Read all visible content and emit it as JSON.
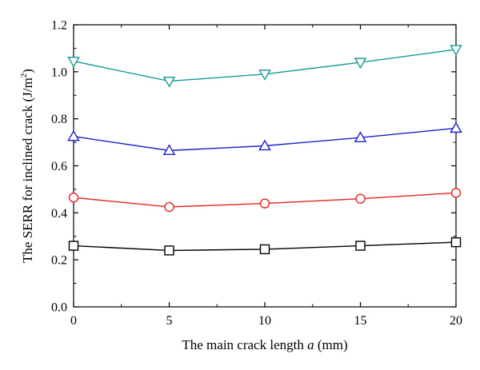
{
  "chart_data": {
    "type": "line",
    "title": "",
    "xlabel_prefix": "The main crack length ",
    "xlabel_var": "a",
    "xlabel_suffix": " (mm)",
    "ylabel_main": "The SERR for inclined crack (J/m",
    "ylabel_sup": "2",
    "ylabel_close": ")",
    "xlim": [
      0,
      20
    ],
    "ylim": [
      0.0,
      1.2
    ],
    "x_ticks": [
      "0",
      "5",
      "10",
      "15",
      "20"
    ],
    "y_ticks": [
      "0.0",
      "0.2",
      "0.4",
      "0.6",
      "0.8",
      "1.0",
      "1.2"
    ],
    "grid": false,
    "legend": "none",
    "x": [
      0,
      5,
      10,
      15,
      20
    ],
    "series": [
      {
        "marker": "square",
        "color": "#000000",
        "values": [
          0.26,
          0.24,
          0.245,
          0.26,
          0.275
        ]
      },
      {
        "marker": "circle",
        "color": "#e8231f",
        "values": [
          0.465,
          0.425,
          0.44,
          0.46,
          0.485
        ]
      },
      {
        "marker": "triangle-up",
        "color": "#1f1fc8",
        "values": [
          0.725,
          0.665,
          0.685,
          0.72,
          0.76
        ]
      },
      {
        "marker": "triangle-down",
        "color": "#1a9a96",
        "values": [
          1.045,
          0.96,
          0.99,
          1.04,
          1.095
        ]
      }
    ]
  }
}
